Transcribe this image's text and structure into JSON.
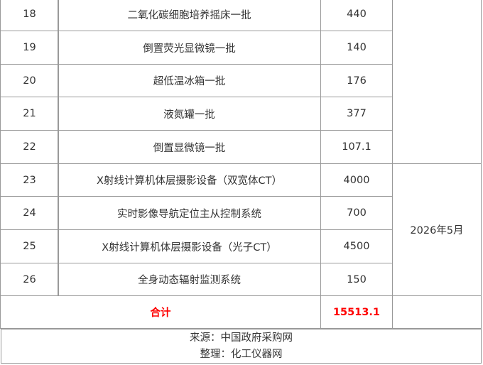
{
  "rows": [
    {
      "no": "18",
      "name": "二氧化碳细胞培养摇床一批",
      "amount": "440"
    },
    {
      "no": "19",
      "name": "倒置荧光显微镜一批",
      "amount": "140"
    },
    {
      "no": "20",
      "name": "超低温冰箱一批",
      "amount": "176"
    },
    {
      "no": "21",
      "name": "液氮罐一批",
      "amount": "377"
    },
    {
      "no": "22",
      "name": "倒置显微镜一批",
      "amount": "107.1"
    },
    {
      "no": "23",
      "name": "X射线计算机体层摄影设备（双宽体CT）",
      "amount": "4000"
    },
    {
      "no": "24",
      "name": "实时影像导航定位主从控制系统",
      "amount": "700"
    },
    {
      "no": "25",
      "name": "X射线计算机体层摄影设备（光子CT）",
      "amount": "4500"
    },
    {
      "no": "26",
      "name": "全身动态辐射监测系统",
      "amount": "150"
    }
  ],
  "date_group": "2026年5月",
  "total": {
    "label": "合计",
    "value": "15513.1"
  },
  "footer": {
    "source": "来源：中国政府采购网",
    "editor": "整理：化工仪器网"
  },
  "colors": {
    "total_text": "#ff0000",
    "border": "#999999"
  }
}
